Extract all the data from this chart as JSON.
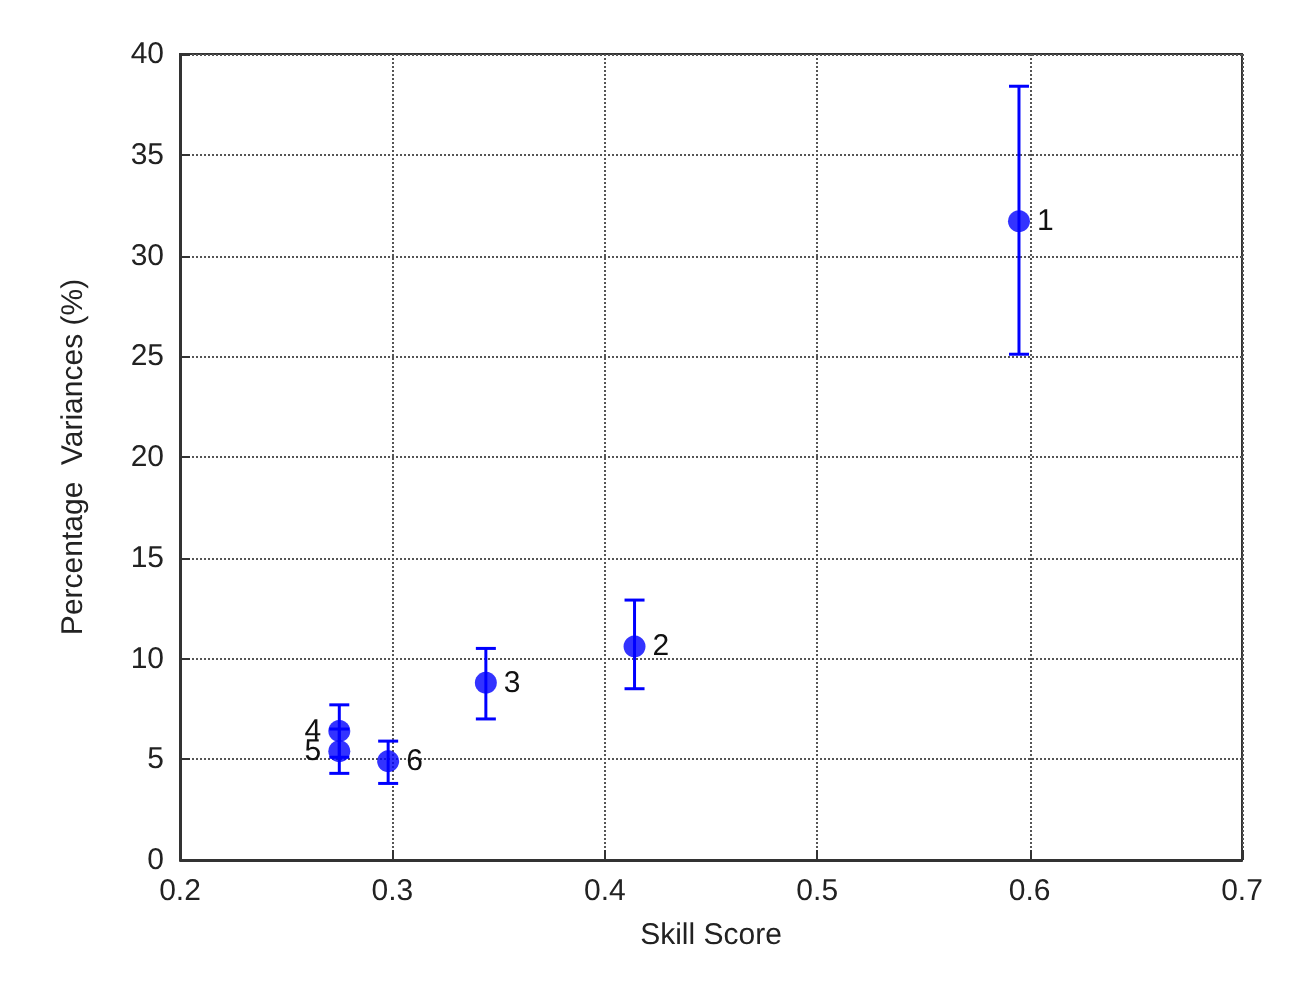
{
  "chart_data": {
    "type": "scatter",
    "xlabel": "Skill Score",
    "ylabel": "Percentage  Variances (%)",
    "x": [
      0.595,
      0.414,
      0.344,
      0.275,
      0.275,
      0.298
    ],
    "values": [
      31.7,
      10.6,
      8.8,
      6.4,
      5.4,
      4.9
    ],
    "errors": [
      [
        25.1,
        38.4
      ],
      [
        8.5,
        12.9
      ],
      [
        7.0,
        10.5
      ],
      [
        5.1,
        7.7
      ],
      [
        4.3,
        6.5
      ],
      [
        3.8,
        5.9
      ]
    ],
    "color": "#0000ff",
    "marker": "circle",
    "grid": true,
    "xlim": [
      0.2,
      0.7
    ],
    "xticks": [
      0.2,
      0.3,
      0.4,
      0.5,
      0.6,
      0.7
    ],
    "ylim": [
      0,
      40
    ],
    "yticks": [
      0,
      5,
      10,
      15,
      20,
      25,
      30,
      35,
      40
    ],
    "annotations": [
      {
        "text": "1",
        "x": 0.595,
        "y": 31.7
      },
      {
        "text": "2",
        "x": 0.414,
        "y": 10.6
      },
      {
        "text": "3",
        "x": 0.344,
        "y": 8.8
      },
      {
        "text": "4",
        "x": 0.275,
        "y": 6.4
      },
      {
        "text": "5",
        "x": 0.275,
        "y": 5.4
      },
      {
        "text": "6",
        "x": 0.298,
        "y": 4.9
      }
    ]
  }
}
